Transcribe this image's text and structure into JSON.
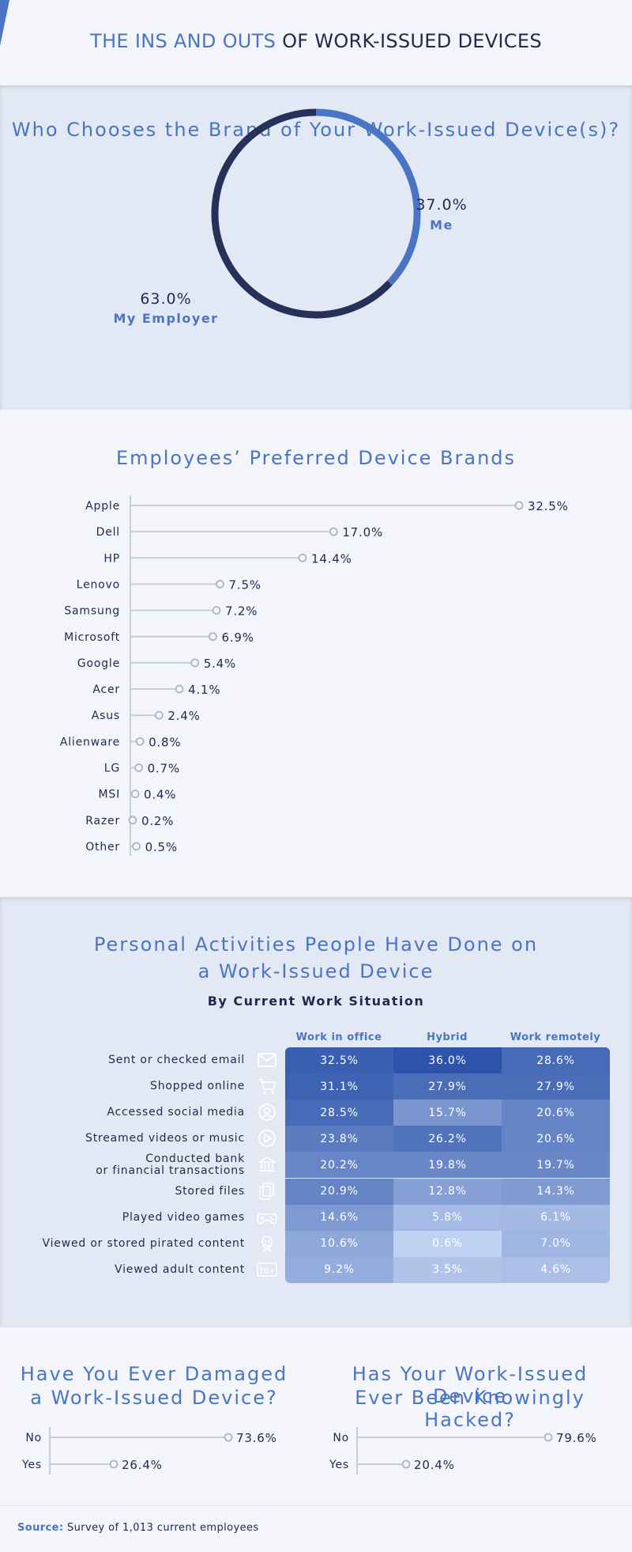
{
  "header": {
    "title_highlight": "THE INS AND OUTS",
    "title_rest": " OF WORK-ISSUED DEVICES"
  },
  "colors": {
    "accent": "#4a74c4",
    "dark": "#26315a",
    "axis": "#c7ccd7"
  },
  "donut": {
    "title": "Who Chooses the Brand of Your Work-Issued Device(s)?",
    "chart_data": {
      "type": "pie",
      "labels": [
        "Me",
        "My Employer"
      ],
      "values": [
        37.0,
        63.0
      ],
      "value_labels": [
        "37.0%",
        "63.0%"
      ],
      "colors": [
        "#4a74c4",
        "#26315a"
      ]
    }
  },
  "brands": {
    "title": "Employees’ Preferred Device Brands",
    "chart_data": {
      "type": "bar",
      "categories": [
        "Apple",
        "Dell",
        "HP",
        "Lenovo",
        "Samsung",
        "Microsoft",
        "Google",
        "Acer",
        "Asus",
        "Alienware",
        "LG",
        "MSI",
        "Razer",
        "Other"
      ],
      "values": [
        32.5,
        17.0,
        14.4,
        7.5,
        7.2,
        6.9,
        5.4,
        4.1,
        2.4,
        0.8,
        0.7,
        0.4,
        0.2,
        0.5
      ],
      "value_labels": [
        "32.5%",
        "17.0%",
        "14.4%",
        "7.5%",
        "7.2%",
        "6.9%",
        "5.4%",
        "4.1%",
        "2.4%",
        "0.8%",
        "0.7%",
        "0.4%",
        "0.2%",
        "0.5%"
      ]
    }
  },
  "activities": {
    "title_line1": "Personal Activities People Have Done on",
    "title_line2": "a Work-Issued Device",
    "subtitle": "By Current Work Situation",
    "chart_data": {
      "type": "heatmap",
      "columns": [
        "Work in office",
        "Hybrid",
        "Work remotely"
      ],
      "rows": [
        {
          "label": "Sent or checked email",
          "icon": "envelope-icon",
          "values": [
            32.5,
            36.0,
            28.6
          ],
          "labels": [
            "32.5%",
            "36.0%",
            "28.6%"
          ]
        },
        {
          "label": "Shopped online",
          "icon": "cart-icon",
          "values": [
            31.1,
            27.9,
            27.9
          ],
          "labels": [
            "31.1%",
            "27.9%",
            "27.9%"
          ]
        },
        {
          "label": "Accessed social media",
          "icon": "user-circle-icon",
          "values": [
            28.5,
            15.7,
            20.6
          ],
          "labels": [
            "28.5%",
            "15.7%",
            "20.6%"
          ]
        },
        {
          "label": "Streamed videos or music",
          "icon": "play-icon",
          "values": [
            23.8,
            26.2,
            20.6
          ],
          "labels": [
            "23.8%",
            "26.2%",
            "20.6%"
          ]
        },
        {
          "label_line1": "Conducted bank",
          "label_line2": "or financial transactions",
          "icon": "bank-icon",
          "values": [
            20.2,
            19.8,
            19.7
          ],
          "labels": [
            "20.2%",
            "19.8%",
            "19.7%"
          ]
        },
        {
          "label": "Stored files",
          "icon": "files-icon",
          "values": [
            20.9,
            12.8,
            14.3
          ],
          "labels": [
            "20.9%",
            "12.8%",
            "14.3%"
          ]
        },
        {
          "label": "Played video games",
          "icon": "gamepad-icon",
          "values": [
            14.6,
            5.8,
            6.1
          ],
          "labels": [
            "14.6%",
            "5.8%",
            "6.1%"
          ]
        },
        {
          "label": "Viewed or stored pirated content",
          "icon": "pirate-icon",
          "values": [
            10.6,
            0.6,
            7.0
          ],
          "labels": [
            "10.6%",
            "0.6%",
            "7.0%"
          ]
        },
        {
          "label": "Viewed adult content",
          "icon": "18-plus-icon",
          "values": [
            9.2,
            3.5,
            4.6
          ],
          "labels": [
            "9.2%",
            "3.5%",
            "4.6%"
          ]
        }
      ]
    }
  },
  "damaged": {
    "title_line1": "Have You Ever Damaged",
    "title_line2": "a Work-Issued Device?",
    "chart_data": {
      "type": "bar",
      "categories": [
        "No",
        "Yes"
      ],
      "values": [
        73.6,
        26.4
      ],
      "value_labels": [
        "73.6%",
        "26.4%"
      ]
    }
  },
  "hacked": {
    "title_line1": "Has Your Work-Issued Device",
    "title_line2": "Ever Been Knowingly Hacked?",
    "chart_data": {
      "type": "bar",
      "categories": [
        "No",
        "Yes"
      ],
      "values": [
        79.6,
        20.4
      ],
      "value_labels": [
        "79.6%",
        "20.4%"
      ]
    }
  },
  "footer": {
    "source_key": "Source:",
    "source_text": " Survey of 1,013 current employees"
  }
}
